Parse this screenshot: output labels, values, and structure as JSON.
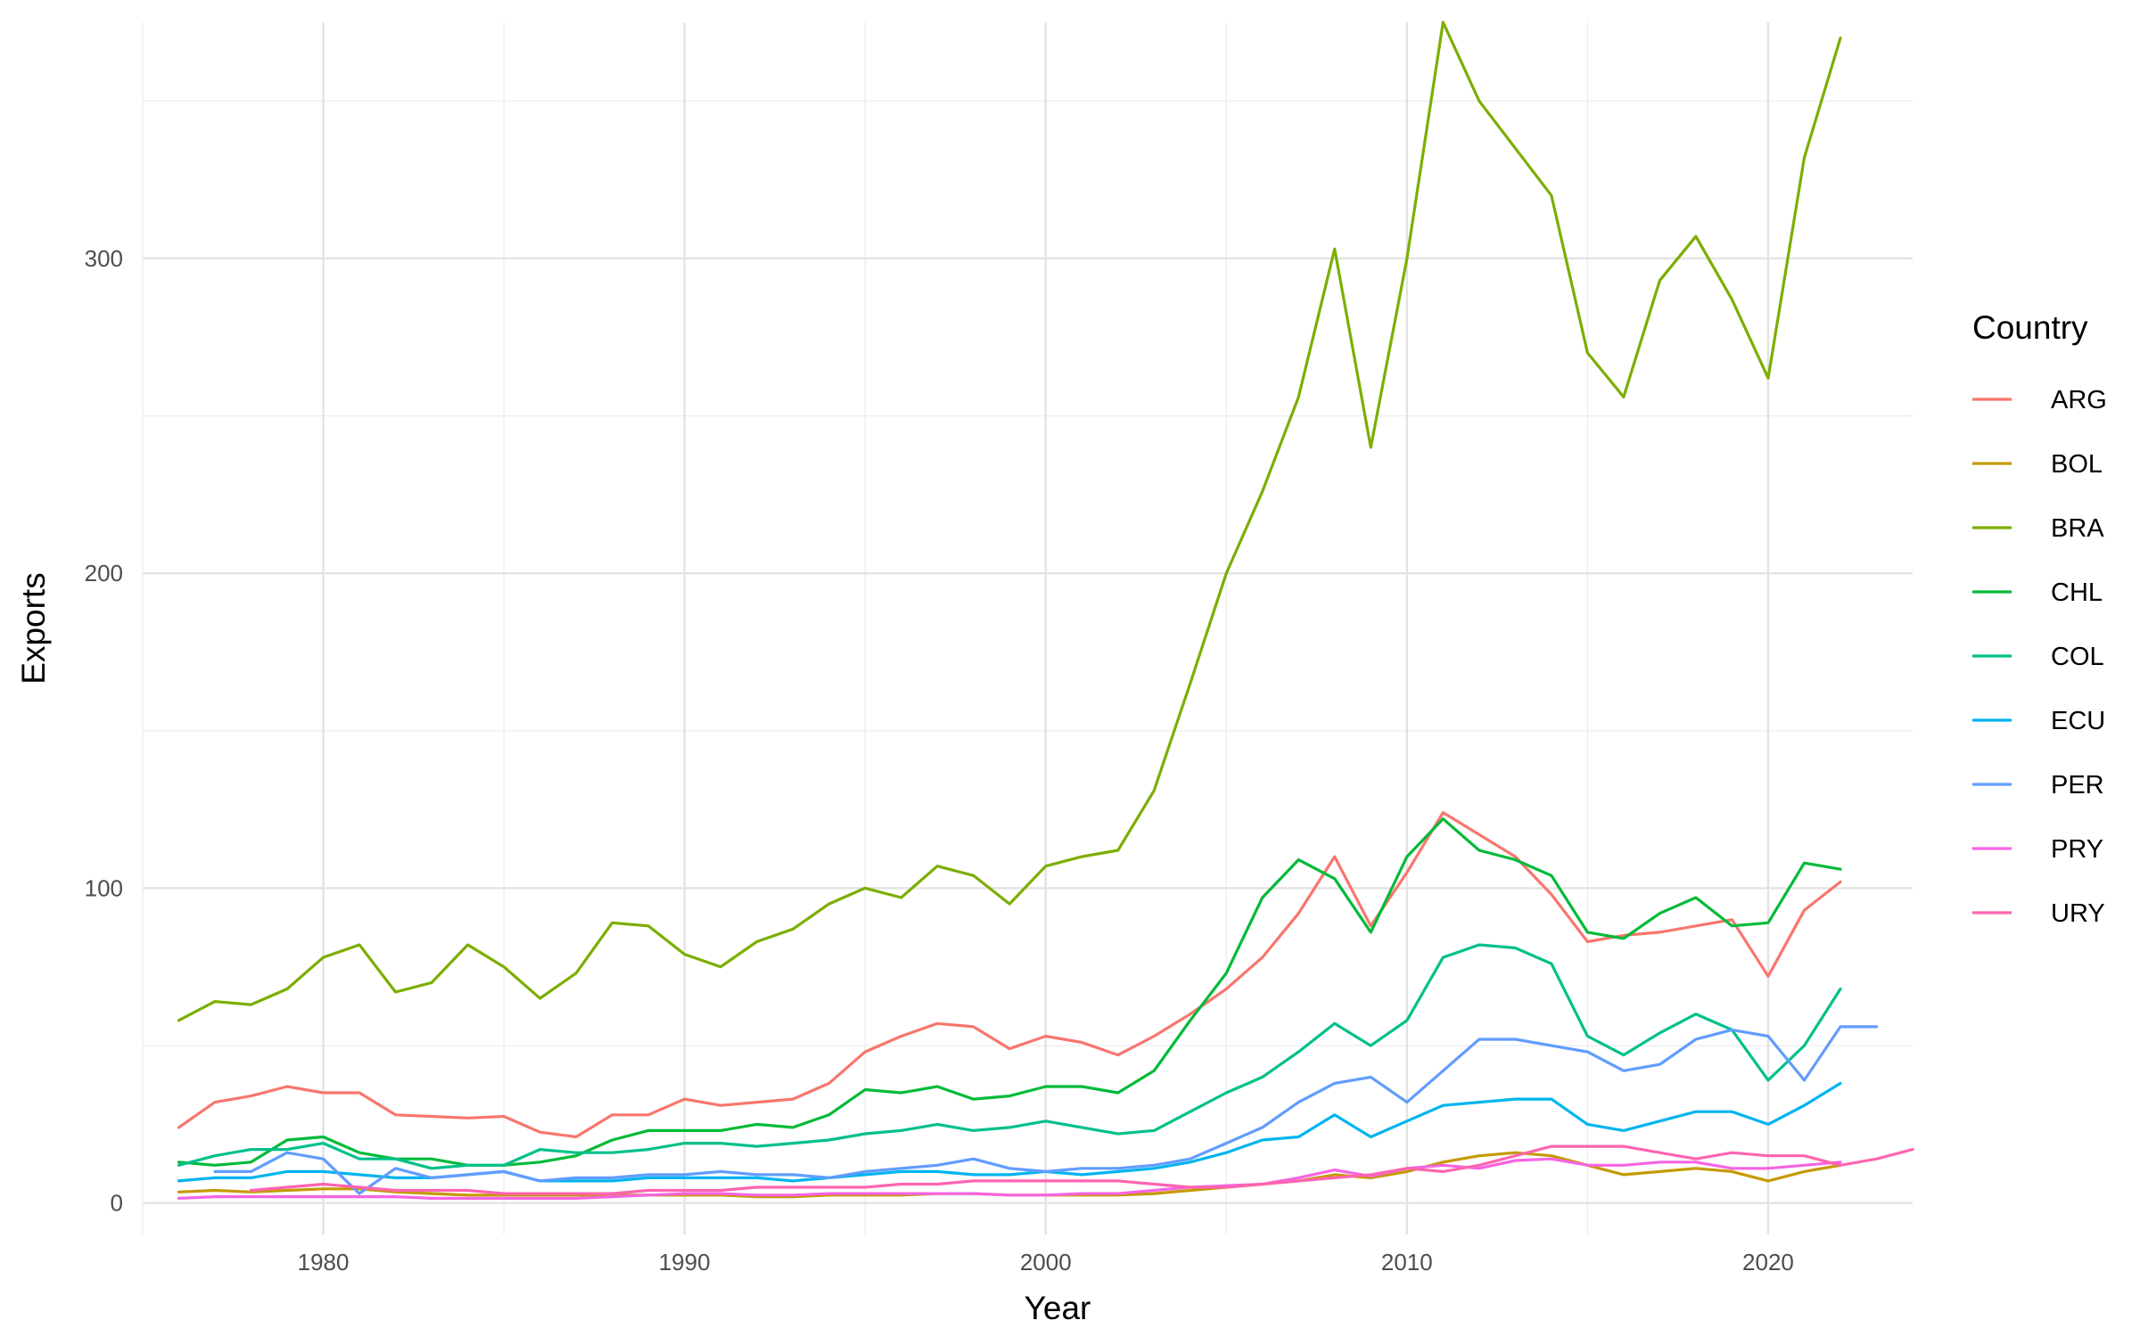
{
  "chart_data": {
    "type": "line",
    "title": "",
    "xlabel": "Year",
    "ylabel": "Exports",
    "xlim": [
      1975,
      2024
    ],
    "ylim": [
      -10,
      375
    ],
    "x_ticks": [
      1980,
      1990,
      2000,
      2010,
      2020
    ],
    "y_ticks": [
      0,
      100,
      200,
      300
    ],
    "grid": true,
    "legend": {
      "title": "Country",
      "position": "right"
    },
    "series": [
      {
        "name": "ARG",
        "color": "#F8766D",
        "x_start": 1976,
        "values": [
          24,
          32,
          34,
          37,
          35,
          35,
          28,
          27.5,
          27,
          27.5,
          22.5,
          21,
          28,
          28,
          33,
          31,
          32,
          33,
          38,
          48,
          53,
          57,
          56,
          49,
          53,
          51,
          47,
          53,
          60,
          68,
          78,
          92,
          110,
          88,
          105,
          124,
          117,
          110,
          98,
          83,
          85,
          86,
          88,
          90,
          72,
          93,
          102
        ]
      },
      {
        "name": "BOL",
        "color": "#C49A00",
        "x_start": 1976,
        "values": [
          3.5,
          4,
          3.5,
          4,
          4.5,
          4.5,
          3.5,
          3,
          2.5,
          2.5,
          2.5,
          2.5,
          2.5,
          2.5,
          2.5,
          2.5,
          2,
          2,
          2.5,
          2.5,
          2.5,
          3,
          3,
          2.5,
          2.5,
          2.5,
          2.5,
          3,
          4,
          5,
          6,
          7,
          9,
          8,
          10,
          13,
          15,
          16,
          15,
          12,
          9,
          10,
          11,
          10,
          7,
          10,
          12
        ]
      },
      {
        "name": "BRA",
        "color": "#7CAE00",
        "x_start": 1976,
        "values": [
          58,
          64,
          63,
          68,
          78,
          82,
          67,
          70,
          82,
          75,
          65,
          73,
          89,
          88,
          79,
          75,
          83,
          87,
          95,
          100,
          97,
          107,
          104,
          95,
          107,
          110,
          112,
          131,
          165,
          200,
          226,
          256,
          303,
          240,
          300,
          375,
          350,
          335,
          320,
          270,
          256,
          293,
          307,
          287,
          262,
          332,
          370
        ]
      },
      {
        "name": "CHL",
        "color": "#00BA38",
        "x_start": 1976,
        "values": [
          13,
          12,
          13,
          20,
          21,
          16,
          14,
          14,
          12,
          12,
          13,
          15,
          20,
          23,
          23,
          23,
          25,
          24,
          28,
          36,
          35,
          37,
          33,
          34,
          37,
          37,
          35,
          42,
          58,
          73,
          97,
          109,
          103,
          86,
          110,
          122,
          112,
          109,
          104,
          86,
          84,
          92,
          97,
          88,
          89,
          108,
          106
        ]
      },
      {
        "name": "COL",
        "color": "#00C08B",
        "x_start": 1976,
        "values": [
          12,
          15,
          17,
          17,
          19,
          14,
          14,
          11,
          12,
          12,
          17,
          16,
          16,
          17,
          19,
          19,
          18,
          19,
          20,
          22,
          23,
          25,
          23,
          24,
          26,
          24,
          22,
          23,
          29,
          35,
          40,
          48,
          57,
          50,
          58,
          78,
          82,
          81,
          76,
          53,
          47,
          54,
          60,
          55,
          39,
          50,
          68
        ]
      },
      {
        "name": "ECU",
        "color": "#00B4EF",
        "x_start": 1976,
        "values": [
          7,
          8,
          8,
          10,
          10,
          9,
          8,
          8,
          9,
          10,
          7,
          7,
          7,
          8,
          8,
          8,
          8,
          7,
          8,
          9,
          10,
          10,
          9,
          9,
          10,
          9,
          10,
          11,
          13,
          16,
          20,
          21,
          28,
          21,
          26,
          31,
          32,
          33,
          33,
          25,
          23,
          26,
          29,
          29,
          25,
          31,
          38
        ]
      },
      {
        "name": "PER",
        "color": "#619CFF",
        "x_start": 1977,
        "values": [
          10,
          10,
          16,
          14,
          3,
          11,
          8,
          9,
          10,
          7,
          8,
          8,
          9,
          9,
          10,
          9,
          9,
          8,
          10,
          11,
          12,
          14,
          11,
          10,
          11,
          11,
          12,
          14,
          19,
          24,
          32,
          38,
          40,
          32,
          42,
          52,
          52,
          50,
          48,
          42,
          44,
          52,
          55,
          53,
          39,
          56,
          56
        ]
      },
      {
        "name": "PRY",
        "color": "#F564E3",
        "x_start": 1976,
        "values": [
          1.5,
          2,
          2,
          2,
          2,
          2,
          2,
          1.5,
          1.5,
          1.5,
          1.5,
          1.5,
          2,
          2.5,
          3,
          3,
          2.5,
          2.5,
          3,
          3,
          3,
          3,
          3,
          2.5,
          2.5,
          3,
          3,
          4,
          5,
          5.5,
          6,
          8,
          10.5,
          8.5,
          11,
          12,
          11,
          13.5,
          14,
          12,
          12,
          13,
          13,
          11,
          11,
          12,
          13
        ]
      },
      {
        "name": "URY",
        "color": "#FF64B0",
        "x_start": 1978,
        "values": [
          4,
          5,
          6,
          5,
          4,
          4,
          4,
          3,
          3,
          3,
          3,
          4,
          4,
          4,
          5,
          5,
          5,
          5,
          6,
          6,
          7,
          7,
          7,
          7,
          7,
          6,
          5,
          5,
          6,
          7,
          8,
          9,
          11,
          10,
          12,
          15,
          18,
          18,
          18,
          16,
          14,
          16,
          15,
          15,
          12,
          14,
          17
        ]
      }
    ]
  }
}
